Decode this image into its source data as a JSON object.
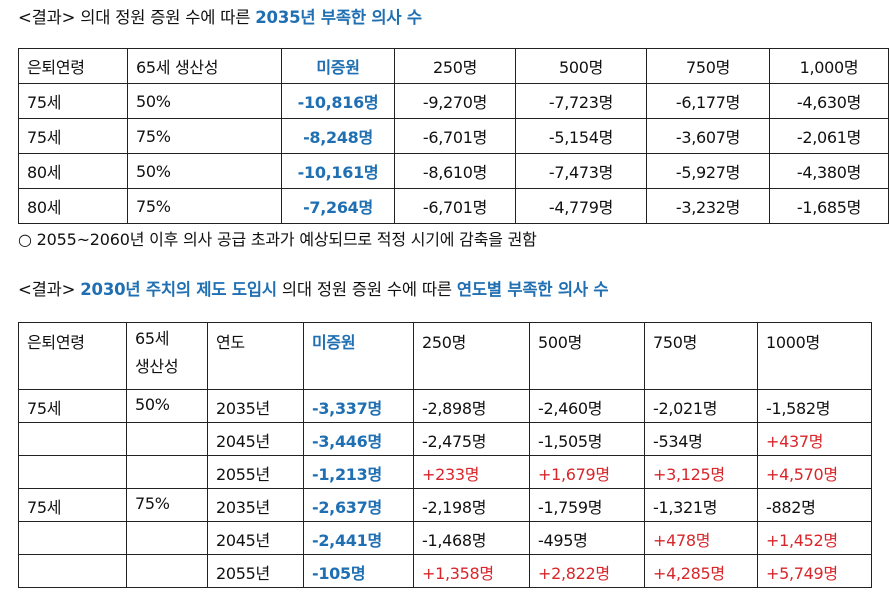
{
  "heading1": {
    "prefix": "<결과> 의대 정원 증원 수에 따른 ",
    "highlight": "2035년 부족한 의사 수"
  },
  "table1": {
    "headers": [
      "은퇴연령",
      "65세 생산성",
      "미증원",
      "250명",
      "500명",
      "750명",
      "1,000명"
    ],
    "rows": [
      [
        "75세",
        "50%",
        "-10,816명",
        "-9,270명",
        "-7,723명",
        "-6,177명",
        "-4,630명"
      ],
      [
        "75세",
        "75%",
        "-8,248명",
        "-6,701명",
        "-5,154명",
        "-3,607명",
        "-2,061명"
      ],
      [
        "80세",
        "50%",
        "-10,161명",
        "-8,610명",
        "-7,473명",
        "-5,927명",
        "-4,380명"
      ],
      [
        "80세",
        "75%",
        "-7,264명",
        "-6,701명",
        "-4,779명",
        "-3,232명",
        "-1,685명"
      ]
    ]
  },
  "bullet": "○ 2055~2060년 이후 의사 공급 초과가 예상되므로 적정 시기에 감축을 권함",
  "heading2": {
    "prefix": "<결과> ",
    "highlight1": "2030년 주치의 제도 도입시",
    "middle": " 의대 정원 증원 수에 따른 ",
    "highlight2": "연도별 부족한 의사 수"
  },
  "table2": {
    "headers": [
      "은퇴연령",
      "65세\n생산성",
      "연도",
      "미증원",
      "250명",
      "500명",
      "750명",
      "1000명"
    ],
    "rows": [
      [
        "75세",
        "50%",
        "2035년",
        "-3,337명",
        "-2,898명",
        "-2,460명",
        "-2,021명",
        "-1,582명"
      ],
      [
        "",
        "",
        "2045년",
        "-3,446명",
        "-2,475명",
        "-1,505명",
        "-534명",
        "+437명"
      ],
      [
        "",
        "",
        "2055년",
        "-1,213명",
        "+233명",
        "+1,679명",
        "+3,125명",
        "+4,570명"
      ],
      [
        "75세",
        "75%",
        "2035년",
        "-2,637명",
        "-2,198명",
        "-1,759명",
        "-1,321명",
        "-882명"
      ],
      [
        "",
        "",
        "2045년",
        "-2,441명",
        "-1,468명",
        "-495명",
        "+478명",
        "+1,452명"
      ],
      [
        "",
        "",
        "2055년",
        "-105명",
        "+1,358명",
        "+2,822명",
        "+4,285명",
        "+5,749명"
      ]
    ]
  },
  "colors": {
    "accent_blue": "#1f6fb2",
    "surplus_red": "#d8262b"
  }
}
